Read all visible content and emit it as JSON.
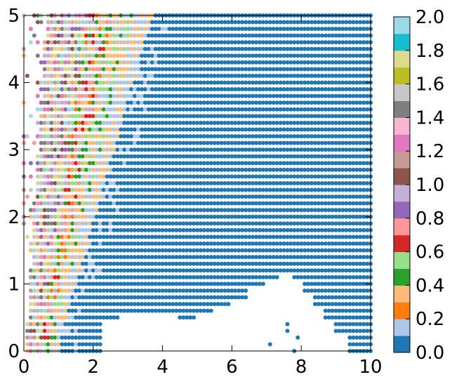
{
  "chart_data": {
    "type": "scatter",
    "title": "",
    "xlabel": "",
    "ylabel": "",
    "xlim": [
      0,
      10
    ],
    "ylim": [
      0,
      5
    ],
    "x_ticks": [
      "0",
      "2",
      "4",
      "6",
      "8",
      "10"
    ],
    "y_ticks": [
      "0",
      "1",
      "2",
      "3",
      "4",
      "5"
    ],
    "grid_step": 0.1,
    "colorbar": {
      "range": [
        0.0,
        2.0
      ],
      "tick_labels": [
        "0.0",
        "0.2",
        "0.4",
        "0.6",
        "0.8",
        "1.0",
        "1.2",
        "1.4",
        "1.6",
        "1.8",
        "2.0"
      ],
      "colors": [
        "#1f77b4",
        "#aec7e8",
        "#ff7f0e",
        "#ffbb78",
        "#2ca02c",
        "#98df8a",
        "#d62728",
        "#ff9896",
        "#9467bd",
        "#c5b0d5",
        "#8c564b",
        "#c49c94",
        "#e377c2",
        "#f7b6d2",
        "#7f7f7f",
        "#c7c7c7",
        "#bcbd22",
        "#dbdb8d",
        "#17becf",
        "#9edae5"
      ]
    },
    "description_of_values": "Color value at each grid point; 0.0 dominates the right side, values rise toward the top-left, and blank regions occur at the left and bottom-middle."
  }
}
